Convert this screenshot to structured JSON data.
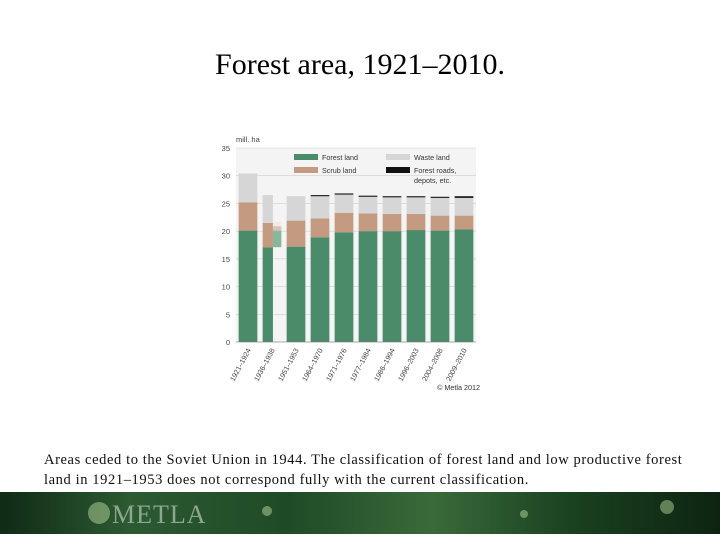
{
  "slide": {
    "title": "Forest area, 1921–2010.",
    "caption": "Areas ceded to the Soviet Union in 1944. The classification of forest land and low productive forest land in 1921–1953 does not correspond fully with the current classification.",
    "footer_logo": "METLA"
  },
  "chart_data": {
    "type": "bar",
    "stacked": true,
    "ylabel": "mill. ha",
    "ylim": [
      0,
      35
    ],
    "yticks": [
      0,
      5,
      10,
      15,
      20,
      25,
      30,
      35
    ],
    "grid": true,
    "legend_position": "top",
    "copyright": "© Metla 2012",
    "colors": {
      "forest_land": "#4a8c6a",
      "scrub_land": "#c49a80",
      "waste_land": "#d6d6d6",
      "forest_roads": "#111111",
      "ceded_forest_land": "#88b89c",
      "ceded_scrub_land": "#dcc2b2",
      "ceded_waste_land": "#ececec"
    },
    "categories": [
      "1921–1924",
      "1936–1938",
      "1951–1953",
      "1964–1970",
      "1971–1976",
      "1977–1984",
      "1986–1994",
      "1996–2003",
      "2004–2008",
      "2009–2010"
    ],
    "series": [
      {
        "name": "Forest land",
        "values": [
          20.1,
          17.1,
          17.2,
          18.9,
          19.8,
          20.0,
          20.0,
          20.2,
          20.1,
          20.3
        ]
      },
      {
        "name": "Scrub land",
        "values": [
          5.1,
          4.4,
          4.7,
          3.4,
          3.5,
          3.2,
          3.1,
          2.9,
          2.7,
          2.5
        ]
      },
      {
        "name": "Waste land",
        "values": [
          5.2,
          5.0,
          4.4,
          4.0,
          3.3,
          3.0,
          3.0,
          3.0,
          3.2,
          3.2
        ]
      },
      {
        "name": "Forest roads, depots, etc.",
        "values": [
          0,
          0,
          0,
          0.2,
          0.2,
          0.2,
          0.2,
          0.2,
          0.2,
          0.3
        ]
      }
    ],
    "ceded_areas": {
      "category": "1936–1938",
      "forest_land": 3.0,
      "scrub_land": 0.8,
      "waste_land": 0.8
    },
    "legend": [
      {
        "label": "Forest land",
        "color_key": "forest_land"
      },
      {
        "label": "Waste land",
        "color_key": "waste_land"
      },
      {
        "label": "Scrub land",
        "color_key": "scrub_land"
      },
      {
        "label": "Forest roads, depots, etc.",
        "color_key": "forest_roads"
      }
    ]
  }
}
